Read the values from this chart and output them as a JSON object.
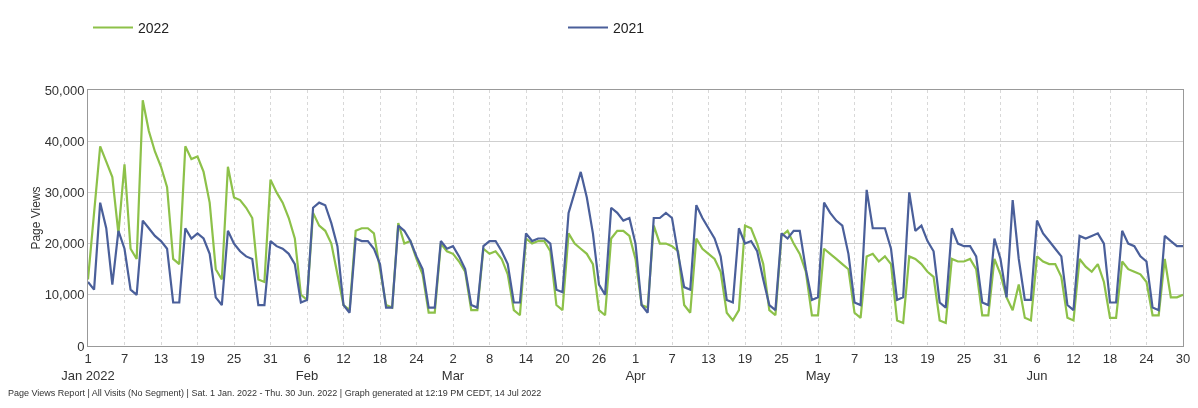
{
  "chart_data": {
    "type": "line",
    "ylabel": "Page Views",
    "legend": "top left",
    "grid": true,
    "line_style": "solid",
    "marker": "none",
    "annotations": [
      "Page Views Report | All Visits (No Segment) | Sat. 1 Jan. 2022 - Thu. 30 Jun. 2022 | Graph generated at 12:19 PM CEDT, 14 Jul 2022"
    ],
    "xlim": [
      "2022-01-01",
      "2022-06-30"
    ],
    "xticks": [
      {
        "value": "2022-01-01",
        "label": "1\nJan 2022"
      },
      {
        "value": "2022-01-07",
        "label": "7"
      },
      {
        "value": "2022-01-13",
        "label": "13"
      },
      {
        "value": "2022-01-19",
        "label": "19"
      },
      {
        "value": "2022-01-25",
        "label": "25"
      },
      {
        "value": "2022-01-31",
        "label": "31"
      },
      {
        "value": "2022-02-06",
        "label": "6\nFeb"
      },
      {
        "value": "2022-02-12",
        "label": "12"
      },
      {
        "value": "2022-02-18",
        "label": "18"
      },
      {
        "value": "2022-02-24",
        "label": "24"
      },
      {
        "value": "2022-03-02",
        "label": "2\nMar"
      },
      {
        "value": "2022-03-08",
        "label": "8"
      },
      {
        "value": "2022-03-14",
        "label": "14"
      },
      {
        "value": "2022-03-20",
        "label": "20"
      },
      {
        "value": "2022-03-26",
        "label": "26"
      },
      {
        "value": "2022-04-01",
        "label": "1\nApr"
      },
      {
        "value": "2022-04-07",
        "label": "7"
      },
      {
        "value": "2022-04-13",
        "label": "13"
      },
      {
        "value": "2022-04-19",
        "label": "19"
      },
      {
        "value": "2022-04-25",
        "label": "25"
      },
      {
        "value": "2022-05-01",
        "label": "1\nMay"
      },
      {
        "value": "2022-05-07",
        "label": "7"
      },
      {
        "value": "2022-05-13",
        "label": "13"
      },
      {
        "value": "2022-05-19",
        "label": "19"
      },
      {
        "value": "2022-05-25",
        "label": "25"
      },
      {
        "value": "2022-05-31",
        "label": "31"
      },
      {
        "value": "2022-06-06",
        "label": "6\nJun"
      },
      {
        "value": "2022-06-12",
        "label": "12"
      },
      {
        "value": "2022-06-18",
        "label": "18"
      },
      {
        "value": "2022-06-24",
        "label": "24"
      },
      {
        "value": "2022-06-30",
        "label": "30"
      }
    ],
    "ylim": [
      0,
      50000
    ],
    "yticks": [
      0,
      {
        "value": 10000,
        "label": "10,000"
      },
      {
        "value": 20000,
        "label": "20,000"
      },
      {
        "value": 30000,
        "label": "30,000"
      },
      {
        "value": 40000,
        "label": "40,000"
      },
      {
        "value": 50000,
        "label": "50,000"
      }
    ],
    "x": [
      "2022-01-01",
      "2022-01-02",
      "2022-01-03",
      "2022-01-04",
      "2022-01-05",
      "2022-01-06",
      "2022-01-07",
      "2022-01-08",
      "2022-01-09",
      "2022-01-10",
      "2022-01-11",
      "2022-01-12",
      "2022-01-13",
      "2022-01-14",
      "2022-01-15",
      "2022-01-16",
      "2022-01-17",
      "2022-01-18",
      "2022-01-19",
      "2022-01-20",
      "2022-01-21",
      "2022-01-22",
      "2022-01-23",
      "2022-01-24",
      "2022-01-25",
      "2022-01-26",
      "2022-01-27",
      "2022-01-28",
      "2022-01-29",
      "2022-01-30",
      "2022-01-31",
      "2022-02-01",
      "2022-02-02",
      "2022-02-03",
      "2022-02-04",
      "2022-02-05",
      "2022-02-06",
      "2022-02-07",
      "2022-02-08",
      "2022-02-09",
      "2022-02-10",
      "2022-02-11",
      "2022-02-12",
      "2022-02-13",
      "2022-02-14",
      "2022-02-15",
      "2022-02-16",
      "2022-02-17",
      "2022-02-18",
      "2022-02-19",
      "2022-02-20",
      "2022-02-21",
      "2022-02-22",
      "2022-02-23",
      "2022-02-24",
      "2022-02-25",
      "2022-02-26",
      "2022-02-27",
      "2022-02-28",
      "2022-03-01",
      "2022-03-02",
      "2022-03-03",
      "2022-03-04",
      "2022-03-05",
      "2022-03-06",
      "2022-03-07",
      "2022-03-08",
      "2022-03-09",
      "2022-03-10",
      "2022-03-11",
      "2022-03-12",
      "2022-03-13",
      "2022-03-14",
      "2022-03-15",
      "2022-03-16",
      "2022-03-17",
      "2022-03-18",
      "2022-03-19",
      "2022-03-20",
      "2022-03-21",
      "2022-03-22",
      "2022-03-23",
      "2022-03-24",
      "2022-03-25",
      "2022-03-26",
      "2022-03-27",
      "2022-03-28",
      "2022-03-29",
      "2022-03-30",
      "2022-03-31",
      "2022-04-01",
      "2022-04-02",
      "2022-04-03",
      "2022-04-04",
      "2022-04-05",
      "2022-04-06",
      "2022-04-07",
      "2022-04-08",
      "2022-04-09",
      "2022-04-10",
      "2022-04-11",
      "2022-04-12",
      "2022-04-13",
      "2022-04-14",
      "2022-04-15",
      "2022-04-16",
      "2022-04-17",
      "2022-04-18",
      "2022-04-19",
      "2022-04-20",
      "2022-04-21",
      "2022-04-22",
      "2022-04-23",
      "2022-04-24",
      "2022-04-25",
      "2022-04-26",
      "2022-04-27",
      "2022-04-28",
      "2022-04-29",
      "2022-04-30",
      "2022-05-01",
      "2022-05-02",
      "2022-05-03",
      "2022-05-04",
      "2022-05-05",
      "2022-05-06",
      "2022-05-07",
      "2022-05-08",
      "2022-05-09",
      "2022-05-10",
      "2022-05-11",
      "2022-05-12",
      "2022-05-13",
      "2022-05-14",
      "2022-05-15",
      "2022-05-16",
      "2022-05-17",
      "2022-05-18",
      "2022-05-19",
      "2022-05-20",
      "2022-05-21",
      "2022-05-22",
      "2022-05-23",
      "2022-05-24",
      "2022-05-25",
      "2022-05-26",
      "2022-05-27",
      "2022-05-28",
      "2022-05-29",
      "2022-05-30",
      "2022-05-31",
      "2022-06-01",
      "2022-06-02",
      "2022-06-03",
      "2022-06-04",
      "2022-06-05",
      "2022-06-06",
      "2022-06-07",
      "2022-06-08",
      "2022-06-09",
      "2022-06-10",
      "2022-06-11",
      "2022-06-12",
      "2022-06-13",
      "2022-06-14",
      "2022-06-15",
      "2022-06-16",
      "2022-06-17",
      "2022-06-18",
      "2022-06-19",
      "2022-06-20",
      "2022-06-21",
      "2022-06-22",
      "2022-06-23",
      "2022-06-24",
      "2022-06-25",
      "2022-06-26",
      "2022-06-27",
      "2022-06-28",
      "2022-06-29",
      "2022-06-30"
    ],
    "series": [
      {
        "name": "2022",
        "color": "#8dc149",
        "values": [
          13000,
          26000,
          39000,
          36000,
          33000,
          22000,
          35500,
          19000,
          17000,
          48000,
          42000,
          38000,
          35000,
          31000,
          17000,
          16000,
          39000,
          36500,
          37000,
          34000,
          28000,
          15000,
          13000,
          35000,
          29000,
          28500,
          27000,
          25000,
          13000,
          12500,
          32500,
          30000,
          28000,
          25000,
          21000,
          10000,
          9000,
          26000,
          23500,
          22500,
          20000,
          14000,
          8000,
          7000,
          22500,
          23000,
          23000,
          22000,
          15000,
          8000,
          7500,
          24000,
          20000,
          20500,
          17000,
          14000,
          6500,
          6500,
          20000,
          18500,
          18000,
          16500,
          14500,
          7000,
          7000,
          19000,
          18000,
          18500,
          17000,
          14000,
          7000,
          6000,
          21000,
          20000,
          20500,
          20500,
          18500,
          8000,
          7000,
          22000,
          20000,
          19000,
          18000,
          16000,
          7000,
          6000,
          21000,
          22500,
          22500,
          21500,
          17000,
          8000,
          7500,
          23500,
          20000,
          20000,
          19500,
          18500,
          8000,
          6500,
          21000,
          19000,
          18000,
          17000,
          14500,
          6500,
          5000,
          7000,
          23500,
          23000,
          20000,
          16000,
          7000,
          6000,
          21500,
          22500,
          20000,
          18000,
          14500,
          6000,
          6000,
          19000,
          18000,
          17000,
          16000,
          15000,
          6500,
          5500,
          17500,
          18000,
          16500,
          17500,
          16000,
          5000,
          4500,
          17500,
          17000,
          16000,
          14500,
          13500,
          5000,
          4500,
          17000,
          16500,
          16500,
          17000,
          15000,
          6000,
          6000,
          17000,
          14000,
          9500,
          7000,
          12000,
          5500,
          5000,
          17500,
          16500,
          16000,
          16000,
          13500,
          5500,
          5000,
          17000,
          15500,
          14500,
          16000,
          12500,
          5500,
          5500,
          16500,
          15000,
          14500,
          14000,
          12500,
          6000,
          6000,
          17000,
          9500,
          9500,
          10000
        ]
      },
      {
        "name": "2021",
        "color": "#4a5f9a",
        "values": [
          12500,
          11000,
          28000,
          23000,
          12000,
          22500,
          19000,
          11000,
          10000,
          24500,
          23000,
          21500,
          20500,
          19000,
          8500,
          8500,
          23000,
          21000,
          22000,
          21000,
          18000,
          9500,
          8000,
          22500,
          20000,
          18500,
          17500,
          17000,
          8000,
          8000,
          20500,
          19500,
          19000,
          18000,
          16000,
          8500,
          9000,
          27000,
          28000,
          27500,
          24000,
          19500,
          8000,
          6500,
          21000,
          20500,
          20500,
          19000,
          16000,
          7500,
          7500,
          23500,
          22500,
          20500,
          17500,
          15000,
          7500,
          7500,
          20500,
          19000,
          19500,
          17500,
          15000,
          8000,
          7500,
          19500,
          20500,
          20500,
          18500,
          16000,
          8500,
          8500,
          22000,
          20500,
          21000,
          21000,
          20000,
          11000,
          10500,
          26000,
          30000,
          34000,
          29000,
          22000,
          12000,
          10000,
          27000,
          26000,
          24500,
          25000,
          20000,
          8000,
          6500,
          25000,
          25000,
          26000,
          25000,
          18000,
          11500,
          11000,
          27500,
          25000,
          23000,
          21000,
          17500,
          9000,
          8500,
          23000,
          20000,
          20500,
          18500,
          13000,
          8000,
          7000,
          22000,
          21000,
          22500,
          22500,
          15000,
          9000,
          9500,
          28000,
          26000,
          24500,
          23500,
          18000,
          8500,
          8000,
          30500,
          23000,
          23000,
          23000,
          19000,
          9000,
          9500,
          30000,
          22500,
          23500,
          20500,
          18500,
          8500,
          7500,
          23000,
          20000,
          19500,
          19500,
          17500,
          8500,
          8000,
          21000,
          17000,
          9500,
          28500,
          17000,
          9000,
          9000,
          24500,
          22000,
          20500,
          19000,
          17500,
          8000,
          7000,
          21500,
          21000,
          21500,
          22000,
          20000,
          8500,
          8500,
          22500,
          20000,
          19500,
          17500,
          16500,
          7500,
          7000,
          21500,
          20500,
          19500,
          19500
        ]
      }
    ]
  }
}
